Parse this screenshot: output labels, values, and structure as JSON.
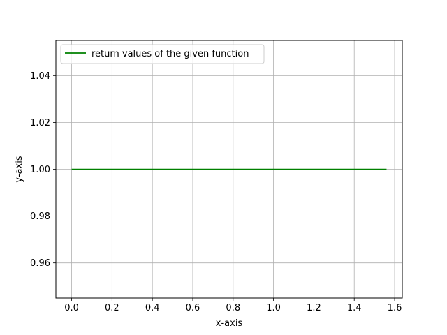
{
  "chart_data": {
    "type": "line",
    "title": "",
    "xlabel": "x-axis",
    "ylabel": "y-axis",
    "xlim": [
      -0.078,
      1.638
    ],
    "ylim": [
      0.945,
      1.055
    ],
    "xticks": [
      0.0,
      0.2,
      0.4,
      0.6,
      0.8,
      1.0,
      1.2,
      1.4,
      1.6
    ],
    "xtick_labels": [
      "0.0",
      "0.2",
      "0.4",
      "0.6",
      "0.8",
      "1.0",
      "1.2",
      "1.4",
      "1.6"
    ],
    "yticks": [
      0.96,
      0.98,
      1.0,
      1.02,
      1.04
    ],
    "ytick_labels": [
      "0.96",
      "0.98",
      "1.00",
      "1.02",
      "1.04"
    ],
    "grid": true,
    "legend_position": "top-left",
    "series": [
      {
        "name": "return values of the given function",
        "color": "#008000",
        "x": [
          0.0,
          1.56
        ],
        "y": [
          1.0,
          1.0
        ]
      }
    ]
  }
}
